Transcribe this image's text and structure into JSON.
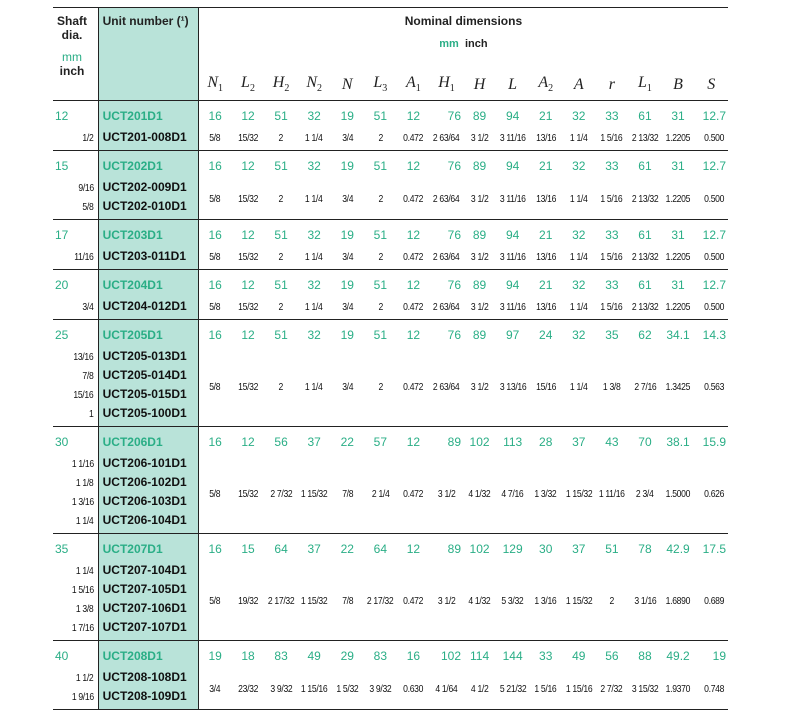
{
  "header": {
    "shaft_title": "Shaft dia.",
    "shaft_mm": "mm",
    "shaft_inch": "inch",
    "unit_title": "Unit number (¹)",
    "dims_title": "Nominal dimensions",
    "dims_mm": "mm",
    "dims_inch": "inch",
    "symbols": [
      [
        "N",
        "1"
      ],
      [
        "L",
        "2"
      ],
      [
        "H",
        "2"
      ],
      [
        "N",
        "2"
      ],
      [
        "N",
        ""
      ],
      [
        "L",
        "3"
      ],
      [
        "A",
        "1"
      ],
      [
        "H",
        "1"
      ],
      [
        "H",
        ""
      ],
      [
        "L",
        ""
      ],
      [
        "A",
        "2"
      ],
      [
        "A",
        ""
      ],
      [
        "r",
        ""
      ],
      [
        "L",
        "1"
      ],
      [
        "B",
        ""
      ],
      [
        "S",
        ""
      ]
    ]
  },
  "colors": {
    "green": "#2aae86",
    "unit_bg": "#b9e3d9"
  },
  "groups": [
    {
      "mm": "12",
      "unit": "UCT201D1",
      "mm_dims": [
        "16",
        "12",
        "51",
        "32",
        "19",
        "51",
        "12",
        "76",
        "89",
        "94",
        "21",
        "32",
        "33",
        "61",
        "31",
        "12.7"
      ],
      "inch_rows": [
        {
          "shaft": "1/2",
          "unit": "UCT201-008D1"
        }
      ],
      "inch_dims": [
        "5/8",
        "15/32",
        "2",
        "1 1/4",
        "3/4",
        "2",
        "0.472",
        "2 63/64",
        "3 1/2",
        "3 11/16",
        "13/16",
        "1 1/4",
        "1 5/16",
        "2 13/32",
        "1.2205",
        "0.500"
      ]
    },
    {
      "mm": "15",
      "unit": "UCT202D1",
      "mm_dims": [
        "16",
        "12",
        "51",
        "32",
        "19",
        "51",
        "12",
        "76",
        "89",
        "94",
        "21",
        "32",
        "33",
        "61",
        "31",
        "12.7"
      ],
      "inch_rows": [
        {
          "shaft": "9/16",
          "unit": "UCT202-009D1"
        },
        {
          "shaft": "5/8",
          "unit": "UCT202-010D1"
        }
      ],
      "inch_dims": [
        "5/8",
        "15/32",
        "2",
        "1 1/4",
        "3/4",
        "2",
        "0.472",
        "2 63/64",
        "3 1/2",
        "3 11/16",
        "13/16",
        "1 1/4",
        "1 5/16",
        "2 13/32",
        "1.2205",
        "0.500"
      ]
    },
    {
      "mm": "17",
      "unit": "UCT203D1",
      "mm_dims": [
        "16",
        "12",
        "51",
        "32",
        "19",
        "51",
        "12",
        "76",
        "89",
        "94",
        "21",
        "32",
        "33",
        "61",
        "31",
        "12.7"
      ],
      "inch_rows": [
        {
          "shaft": "11/16",
          "unit": "UCT203-011D1"
        }
      ],
      "inch_dims": [
        "5/8",
        "15/32",
        "2",
        "1 1/4",
        "3/4",
        "2",
        "0.472",
        "2 63/64",
        "3 1/2",
        "3 11/16",
        "13/16",
        "1 1/4",
        "1 5/16",
        "2 13/32",
        "1.2205",
        "0.500"
      ]
    },
    {
      "mm": "20",
      "unit": "UCT204D1",
      "mm_dims": [
        "16",
        "12",
        "51",
        "32",
        "19",
        "51",
        "12",
        "76",
        "89",
        "94",
        "21",
        "32",
        "33",
        "61",
        "31",
        "12.7"
      ],
      "inch_rows": [
        {
          "shaft": "3/4",
          "unit": "UCT204-012D1"
        }
      ],
      "inch_dims": [
        "5/8",
        "15/32",
        "2",
        "1 1/4",
        "3/4",
        "2",
        "0.472",
        "2 63/64",
        "3 1/2",
        "3 11/16",
        "13/16",
        "1 1/4",
        "1 5/16",
        "2 13/32",
        "1.2205",
        "0.500"
      ]
    },
    {
      "mm": "25",
      "unit": "UCT205D1",
      "mm_dims": [
        "16",
        "12",
        "51",
        "32",
        "19",
        "51",
        "12",
        "76",
        "89",
        "97",
        "24",
        "32",
        "35",
        "62",
        "34.1",
        "14.3"
      ],
      "inch_rows": [
        {
          "shaft": "13/16",
          "unit": "UCT205-013D1"
        },
        {
          "shaft": "7/8",
          "unit": "UCT205-014D1"
        },
        {
          "shaft": "15/16",
          "unit": "UCT205-015D1"
        },
        {
          "shaft": "1",
          "unit": "UCT205-100D1"
        }
      ],
      "inch_dims": [
        "5/8",
        "15/32",
        "2",
        "1 1/4",
        "3/4",
        "2",
        "0.472",
        "2 63/64",
        "3 1/2",
        "3 13/16",
        "15/16",
        "1 1/4",
        "1 3/8",
        "2 7/16",
        "1.3425",
        "0.563"
      ]
    },
    {
      "mm": "30",
      "unit": "UCT206D1",
      "mm_dims": [
        "16",
        "12",
        "56",
        "37",
        "22",
        "57",
        "12",
        "89",
        "102",
        "113",
        "28",
        "37",
        "43",
        "70",
        "38.1",
        "15.9"
      ],
      "inch_rows": [
        {
          "shaft": "1 1/16",
          "unit": "UCT206-101D1"
        },
        {
          "shaft": "1 1/8",
          "unit": "UCT206-102D1"
        },
        {
          "shaft": "1 3/16",
          "unit": "UCT206-103D1"
        },
        {
          "shaft": "1 1/4",
          "unit": "UCT206-104D1"
        }
      ],
      "inch_dims": [
        "5/8",
        "15/32",
        "2 7/32",
        "1 15/32",
        "7/8",
        "2 1/4",
        "0.472",
        "3 1/2",
        "4 1/32",
        "4 7/16",
        "1 3/32",
        "1 15/32",
        "1 11/16",
        "2 3/4",
        "1.5000",
        "0.626"
      ]
    },
    {
      "mm": "35",
      "unit": "UCT207D1",
      "mm_dims": [
        "16",
        "15",
        "64",
        "37",
        "22",
        "64",
        "12",
        "89",
        "102",
        "129",
        "30",
        "37",
        "51",
        "78",
        "42.9",
        "17.5"
      ],
      "inch_rows": [
        {
          "shaft": "1 1/4",
          "unit": "UCT207-104D1"
        },
        {
          "shaft": "1 5/16",
          "unit": "UCT207-105D1"
        },
        {
          "shaft": "1 3/8",
          "unit": "UCT207-106D1"
        },
        {
          "shaft": "1 7/16",
          "unit": "UCT207-107D1"
        }
      ],
      "inch_dims": [
        "5/8",
        "19/32",
        "2 17/32",
        "1 15/32",
        "7/8",
        "2 17/32",
        "0.472",
        "3 1/2",
        "4 1/32",
        "5 3/32",
        "1 3/16",
        "1 15/32",
        "2",
        "3 1/16",
        "1.6890",
        "0.689"
      ]
    },
    {
      "mm": "40",
      "unit": "UCT208D1",
      "mm_dims": [
        "19",
        "18",
        "83",
        "49",
        "29",
        "83",
        "16",
        "102",
        "114",
        "144",
        "33",
        "49",
        "56",
        "88",
        "49.2",
        "19"
      ],
      "inch_rows": [
        {
          "shaft": "1 1/2",
          "unit": "UCT208-108D1"
        },
        {
          "shaft": "1 9/16",
          "unit": "UCT208-109D1"
        }
      ],
      "inch_dims": [
        "3/4",
        "23/32",
        "3 9/32",
        "1 15/16",
        "1 5/32",
        "3 9/32",
        "0.630",
        "4 1/64",
        "4 1/2",
        "5 21/32",
        "1 5/16",
        "1 15/16",
        "2 7/32",
        "3 15/32",
        "1.9370",
        "0.748"
      ]
    }
  ]
}
